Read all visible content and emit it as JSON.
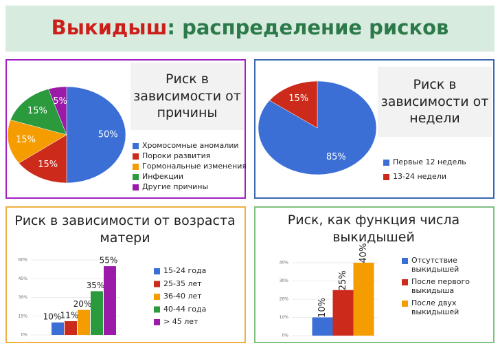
{
  "header": {
    "title_main": "Выкидыш",
    "title_rest": ": распределение рисков"
  },
  "chart_data": [
    {
      "type": "pie",
      "title": "Риск в зависимости от причины",
      "categories": [
        "Хромосомные аномалии",
        "Пороки развития",
        "Гормональные изменения",
        "Инфекции",
        "Другие причины"
      ],
      "values": [
        50,
        15,
        15,
        15,
        5
      ],
      "value_labels": [
        "50%",
        "15%",
        "15%",
        "15%",
        "5%"
      ],
      "colors": [
        "#3b6fd6",
        "#cc2b1b",
        "#f59c00",
        "#2a9a3c",
        "#9b1aa8"
      ]
    },
    {
      "type": "pie",
      "title": "Риск в зависимости от недели",
      "categories": [
        "Первые 12 недель",
        "13-24 недели"
      ],
      "values": [
        85,
        15
      ],
      "value_labels": [
        "85%",
        "15%"
      ],
      "colors": [
        "#3b6fd6",
        "#cc2b1b"
      ]
    },
    {
      "type": "bar",
      "title": "Риск в зависимости от возраста матери",
      "categories": [
        "15-24 года",
        "25-35 лет",
        "36-40 лет",
        "40-44 года",
        "> 45 лет"
      ],
      "values": [
        10,
        11,
        20,
        35,
        55
      ],
      "value_labels": [
        "10%",
        "11%",
        "20%",
        "35%",
        "55%"
      ],
      "colors": [
        "#3b6fd6",
        "#cc2b1b",
        "#f59c00",
        "#2a9a3c",
        "#9b1aa8"
      ],
      "ylim": [
        0,
        60
      ],
      "yticks": [
        {
          "value": 0,
          "label": "0%"
        },
        {
          "value": 15,
          "label": "15%"
        },
        {
          "value": 30,
          "label": "30%"
        },
        {
          "value": 45,
          "label": "45%"
        },
        {
          "value": 60,
          "label": "60%"
        }
      ]
    },
    {
      "type": "bar",
      "title": "Риск, как функция числа выкидышей",
      "categories": [
        "Отсутствие выкидышей",
        "После первого выкидыша",
        "После двух выкидышей"
      ],
      "values": [
        10,
        25,
        40
      ],
      "value_labels": [
        "10%",
        "25%",
        "40%"
      ],
      "colors": [
        "#3b6fd6",
        "#cc2b1b",
        "#f59c00"
      ],
      "ylim": [
        0,
        40
      ],
      "yticks": [
        {
          "value": 0,
          "label": "0%"
        },
        {
          "value": 10,
          "label": "10%"
        },
        {
          "value": 20,
          "label": "20%"
        },
        {
          "value": 30,
          "label": "30%"
        },
        {
          "value": 40,
          "label": "40%"
        }
      ]
    }
  ]
}
